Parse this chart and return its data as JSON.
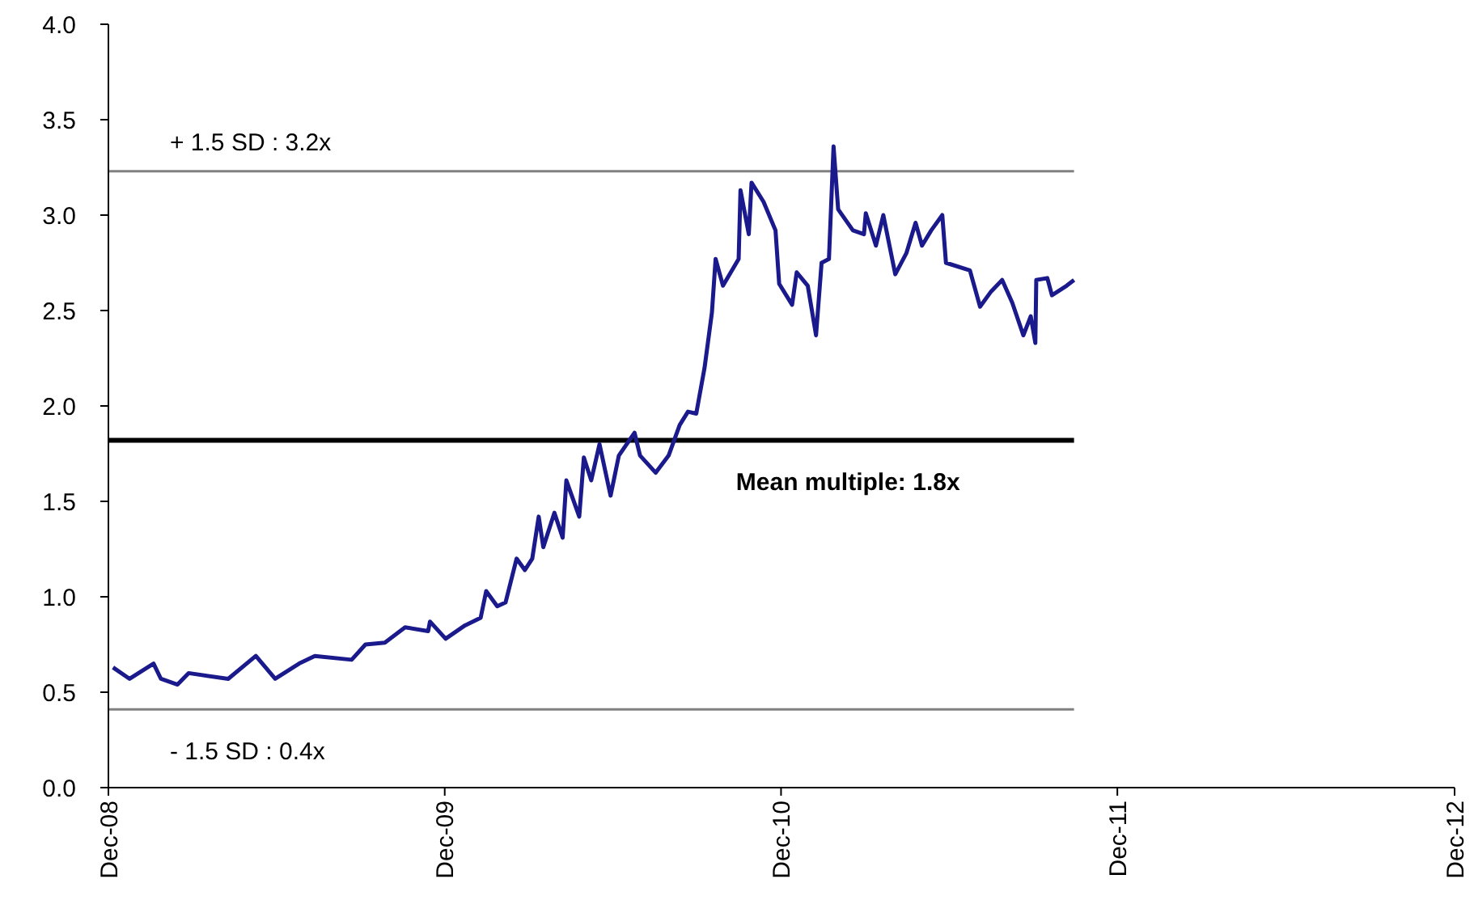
{
  "chart_data": {
    "type": "line",
    "x": [
      "2008-12-06",
      "2008-12-24",
      "2009-01-19",
      "2009-01-27",
      "2009-02-14",
      "2009-02-26",
      "2009-04-10",
      "2009-05-10",
      "2009-05-31",
      "2009-06-26",
      "2009-07-13",
      "2009-08-22",
      "2009-09-06",
      "2009-09-27",
      "2009-10-19",
      "2009-11-13",
      "2009-11-15",
      "2009-12-02",
      "2009-12-23",
      "2010-01-09",
      "2010-01-15",
      "2010-01-27",
      "2010-02-05",
      "2010-02-17",
      "2010-02-26",
      "2010-03-06",
      "2010-03-13",
      "2010-03-18",
      "2010-03-30",
      "2010-04-08",
      "2010-04-12",
      "2010-04-26",
      "2010-05-01",
      "2010-05-09",
      "2010-05-18",
      "2010-05-30",
      "2010-06-08",
      "2010-06-25",
      "2010-07-01",
      "2010-07-18",
      "2010-08-01",
      "2010-08-13",
      "2010-08-22",
      "2010-08-31",
      "2010-09-09",
      "2010-09-17",
      "2010-09-21",
      "2010-09-29",
      "2010-10-16",
      "2010-10-18",
      "2010-10-27",
      "2010-10-30",
      "2010-11-12",
      "2010-11-25",
      "2010-11-29",
      "2010-12-13",
      "2010-12-18",
      "2010-12-30",
      "2011-01-08",
      "2011-01-14",
      "2011-01-22",
      "2011-01-27",
      "2011-02-01",
      "2011-02-17",
      "2011-03-01",
      "2011-03-03",
      "2011-03-14",
      "2011-03-22",
      "2011-04-04",
      "2011-04-16",
      "2011-04-26",
      "2011-05-03",
      "2011-05-13",
      "2011-05-25",
      "2011-05-29",
      "2011-06-24",
      "2011-07-05",
      "2011-07-17",
      "2011-07-29",
      "2011-08-09",
      "2011-08-21",
      "2011-08-29",
      "2011-09-03",
      "2011-09-04",
      "2011-09-16",
      "2011-09-21",
      "2011-10-07",
      "2011-10-15"
    ],
    "series": [
      {
        "color": "#1a1a8c",
        "values": [
          0.63,
          0.57,
          0.65,
          0.57,
          0.54,
          0.6,
          0.57,
          0.69,
          0.57,
          0.65,
          0.69,
          0.67,
          0.75,
          0.76,
          0.84,
          0.82,
          0.87,
          0.78,
          0.85,
          0.89,
          1.03,
          0.95,
          0.97,
          1.2,
          1.14,
          1.2,
          1.42,
          1.26,
          1.44,
          1.31,
          1.61,
          1.42,
          1.73,
          1.61,
          1.8,
          1.53,
          1.74,
          1.86,
          1.74,
          1.65,
          1.74,
          1.9,
          1.97,
          1.96,
          2.2,
          2.49,
          2.77,
          2.63,
          2.77,
          3.13,
          2.9,
          3.17,
          3.07,
          2.92,
          2.64,
          2.53,
          2.7,
          2.63,
          2.37,
          2.75,
          2.77,
          3.36,
          3.03,
          2.92,
          2.9,
          3.01,
          2.84,
          3.0,
          2.69,
          2.8,
          2.96,
          2.84,
          2.92,
          3.0,
          2.75,
          2.71,
          2.52,
          2.6,
          2.66,
          2.54,
          2.37,
          2.47,
          2.33,
          2.66,
          2.67,
          2.58,
          2.63,
          2.66
        ]
      }
    ],
    "xlim": [
      "2008-12-01",
      "2012-12-01"
    ],
    "xticks": [
      {
        "value": "2008-12-01",
        "label": "Dec-08"
      },
      {
        "value": "2009-12-01",
        "label": "Dec-09"
      },
      {
        "value": "2010-12-01",
        "label": "Dec-10"
      },
      {
        "value": "2011-12-01",
        "label": "Dec-11"
      },
      {
        "value": "2012-12-01",
        "label": "Dec-12"
      }
    ],
    "ylim": [
      0,
      4
    ],
    "yticks": [
      {
        "value": 0,
        "label": "0.0"
      },
      {
        "value": 0.5,
        "label": "0.5"
      },
      {
        "value": 1,
        "label": "1.0"
      },
      {
        "value": 1.5,
        "label": "1.5"
      },
      {
        "value": 2,
        "label": "2.0"
      },
      {
        "value": 2.5,
        "label": "2.5"
      },
      {
        "value": 3,
        "label": "3.0"
      },
      {
        "value": 3.5,
        "label": "3.5"
      },
      {
        "value": 4,
        "label": "4.0"
      }
    ],
    "ref_lines": [
      {
        "axis": "y",
        "value": 3.23,
        "label": "+ 1.5 SD : 3.2x",
        "color": "#808080"
      },
      {
        "axis": "y",
        "value": 1.82,
        "label": "Mean multiple: 1.8x",
        "color": "#000000"
      },
      {
        "axis": "y",
        "value": 0.41,
        "label": "- 1.5 SD : 0.4x",
        "color": "#808080"
      }
    ],
    "grid": false
  }
}
